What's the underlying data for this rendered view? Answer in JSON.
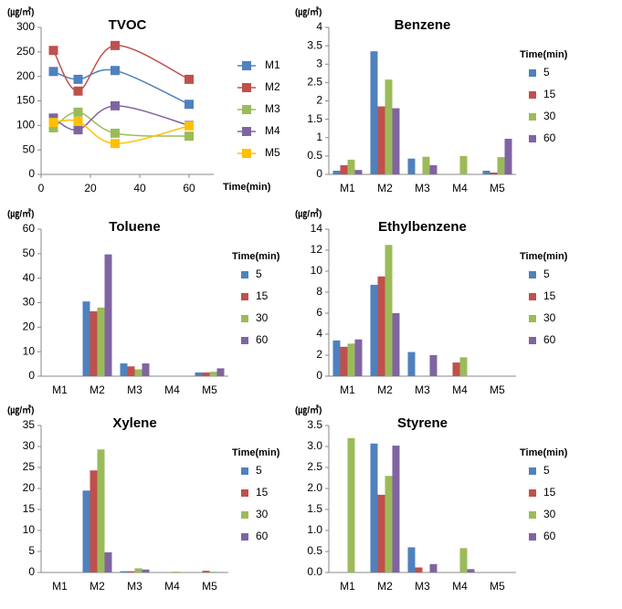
{
  "chart_data": [
    {
      "type": "line",
      "title": "TVOC",
      "ylabel": "(㎍/㎥)",
      "xlabel": "Time(min)",
      "x": [
        5,
        15,
        30,
        60
      ],
      "xlim": [
        0,
        70
      ],
      "xticks": [
        0,
        20,
        40,
        60
      ],
      "ylim": [
        0,
        300
      ],
      "yticks": [
        0,
        50,
        100,
        150,
        200,
        250,
        300
      ],
      "series": [
        {
          "name": "M1",
          "color": "#4f81bd",
          "values": [
            210,
            194,
            212,
            143
          ]
        },
        {
          "name": "M2",
          "color": "#c0504d",
          "values": [
            253,
            170,
            263,
            194
          ]
        },
        {
          "name": "M3",
          "color": "#9bbb59",
          "values": [
            95,
            127,
            84,
            78
          ]
        },
        {
          "name": "M4",
          "color": "#8064a2",
          "values": [
            115,
            91,
            140,
            100
          ]
        },
        {
          "name": "M5",
          "color": "#ffc000",
          "values": [
            106,
            108,
            63,
            99
          ]
        }
      ]
    },
    {
      "type": "bar",
      "title": "Benzene",
      "ylabel": "(㎍/㎥)",
      "legend_title": "Time(min)",
      "categories": [
        "M1",
        "M2",
        "M3",
        "M4",
        "M5"
      ],
      "ylim": [
        0,
        4
      ],
      "yticks": [
        0,
        0.5,
        1,
        1.5,
        2,
        2.5,
        3,
        3.5,
        4
      ],
      "series": [
        {
          "name": "5",
          "color": "#4f81bd",
          "values": [
            0.1,
            3.35,
            0.43,
            0,
            0.1
          ]
        },
        {
          "name": "15",
          "color": "#c0504d",
          "values": [
            0.25,
            1.85,
            0,
            0,
            0.05
          ]
        },
        {
          "name": "30",
          "color": "#9bbb59",
          "values": [
            0.4,
            2.58,
            0.48,
            0.5,
            0.47
          ]
        },
        {
          "name": "60",
          "color": "#8064a2",
          "values": [
            0.12,
            1.8,
            0.25,
            0,
            0.97
          ]
        }
      ]
    },
    {
      "type": "bar",
      "title": "Toluene",
      "ylabel": "(㎍/㎥)",
      "legend_title": "Time(min)",
      "categories": [
        "M1",
        "M2",
        "M3",
        "M4",
        "M5"
      ],
      "ylim": [
        0,
        60
      ],
      "yticks": [
        0,
        10,
        20,
        30,
        40,
        50,
        60
      ],
      "series": [
        {
          "name": "5",
          "color": "#4f81bd",
          "values": [
            0,
            30.5,
            5.2,
            0,
            1.5
          ]
        },
        {
          "name": "15",
          "color": "#c0504d",
          "values": [
            0,
            26.5,
            4,
            0,
            1.5
          ]
        },
        {
          "name": "30",
          "color": "#9bbb59",
          "values": [
            0,
            28,
            2.8,
            0,
            1.8
          ]
        },
        {
          "name": "60",
          "color": "#8064a2",
          "values": [
            0,
            49.7,
            5.2,
            0,
            3.2
          ]
        }
      ]
    },
    {
      "type": "bar",
      "title": "Ethylbenzene",
      "ylabel": "(㎍/㎥)",
      "legend_title": "Time(min)",
      "categories": [
        "M1",
        "M2",
        "M3",
        "M4",
        "M5"
      ],
      "ylim": [
        0,
        14
      ],
      "yticks": [
        0,
        2,
        4,
        6,
        8,
        10,
        12,
        14
      ],
      "series": [
        {
          "name": "5",
          "color": "#4f81bd",
          "values": [
            3.4,
            8.7,
            2.3,
            0,
            0
          ]
        },
        {
          "name": "15",
          "color": "#c0504d",
          "values": [
            2.8,
            9.5,
            0,
            1.3,
            0
          ]
        },
        {
          "name": "30",
          "color": "#9bbb59",
          "values": [
            3.1,
            12.5,
            0,
            1.8,
            0
          ]
        },
        {
          "name": "60",
          "color": "#8064a2",
          "values": [
            3.5,
            6,
            2,
            0,
            0
          ]
        }
      ]
    },
    {
      "type": "bar",
      "title": "Xylene",
      "ylabel": "(㎍/㎥)",
      "legend_title": "Time(min)",
      "categories": [
        "M1",
        "M2",
        "M3",
        "M4",
        "M5"
      ],
      "ylim": [
        0,
        35
      ],
      "yticks": [
        0,
        5,
        10,
        15,
        20,
        25,
        30,
        35
      ],
      "series": [
        {
          "name": "5",
          "color": "#4f81bd",
          "values": [
            0,
            19.5,
            0.3,
            0,
            0
          ]
        },
        {
          "name": "15",
          "color": "#c0504d",
          "values": [
            0,
            24.3,
            0.3,
            0,
            0.4
          ]
        },
        {
          "name": "30",
          "color": "#9bbb59",
          "values": [
            0,
            29.3,
            1,
            0.2,
            0.2
          ]
        },
        {
          "name": "60",
          "color": "#8064a2",
          "values": [
            0,
            4.8,
            0.7,
            0,
            0.1
          ]
        }
      ]
    },
    {
      "type": "bar",
      "title": "Styrene",
      "ylabel": "(㎍/㎥)",
      "legend_title": "Time(min)",
      "categories": [
        "M1",
        "M2",
        "M3",
        "M4",
        "M5"
      ],
      "ylim": [
        0,
        3.5
      ],
      "yticks": [
        {
          "value": 0,
          "label": "0.0"
        },
        0.5,
        {
          "value": 1,
          "label": "1.0"
        },
        1.5,
        {
          "value": 2,
          "label": "2.0"
        },
        2.5,
        {
          "value": 3,
          "label": "3.0"
        },
        3.5
      ],
      "series": [
        {
          "name": "5",
          "color": "#4f81bd",
          "values": [
            0,
            3.07,
            0.6,
            0,
            0
          ]
        },
        {
          "name": "15",
          "color": "#c0504d",
          "values": [
            0,
            1.85,
            0.12,
            0,
            0
          ]
        },
        {
          "name": "30",
          "color": "#9bbb59",
          "values": [
            3.2,
            2.3,
            0,
            0.58,
            0
          ]
        },
        {
          "name": "60",
          "color": "#8064a2",
          "values": [
            0,
            3.02,
            0.2,
            0.08,
            0
          ]
        }
      ]
    }
  ]
}
